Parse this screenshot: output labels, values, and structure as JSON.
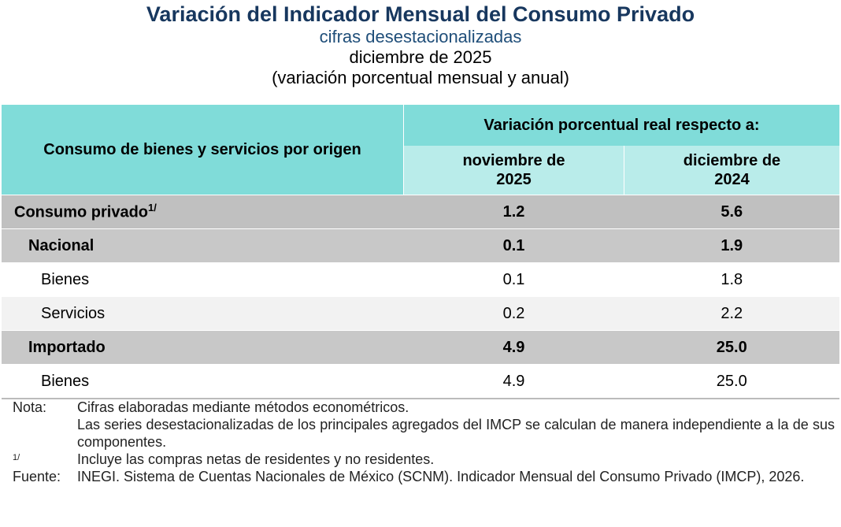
{
  "header": {
    "title": "Variación del Indicador Mensual del Consumo Privado",
    "subtitle": "cifras desestacionalizadas",
    "period": "diciembre de 2025",
    "unit": "(variación porcentual mensual y anual)"
  },
  "table": {
    "row_header": "Consumo de bienes y servicios por origen",
    "group_header": "Variación porcentual real respecto a:",
    "columns": [
      "noviembre de 2025",
      "diciembre de 2024"
    ],
    "rows": [
      {
        "label": "Consumo privado",
        "sup": "1/",
        "values": [
          "1.2",
          "5.6"
        ]
      },
      {
        "label": "Nacional",
        "values": [
          "0.1",
          "1.9"
        ]
      },
      {
        "label": "Bienes",
        "values": [
          "0.1",
          "1.8"
        ]
      },
      {
        "label": "Servicios",
        "values": [
          "0.2",
          "2.2"
        ]
      },
      {
        "label": "Importado",
        "values": [
          "4.9",
          "25.0"
        ]
      },
      {
        "label": "Bienes",
        "values": [
          "4.9",
          "25.0"
        ]
      }
    ]
  },
  "notes": {
    "note_marker": "Nota:",
    "note_lines": [
      "Cifras elaboradas mediante métodos econométricos.",
      "Las series desestacionalizadas de los principales agregados del IMCP se calculan de manera independiente a la de sus componentes."
    ],
    "footnote_marker": "1/",
    "footnote": "Incluye las compras netas de residentes y no residentes.",
    "source_marker": "Fuente:",
    "source": "INEGI. Sistema de Cuentas Nacionales de México (SCNM). Indicador Mensual del Consumo Privado (IMCP), 2026."
  }
}
